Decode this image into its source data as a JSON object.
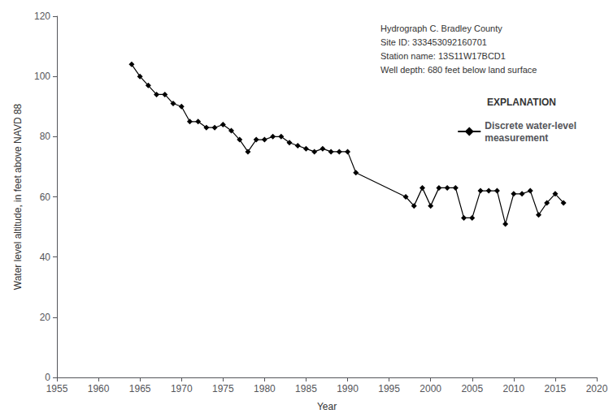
{
  "chart_data": {
    "type": "line",
    "x": [
      1964,
      1965,
      1966,
      1967,
      1968,
      1969,
      1970,
      1971,
      1972,
      1973,
      1974,
      1975,
      1976,
      1977,
      1978,
      1979,
      1980,
      1981,
      1982,
      1983,
      1984,
      1985,
      1986,
      1987,
      1988,
      1989,
      1990,
      1991,
      1997,
      1998,
      1999,
      2000,
      2001,
      2002,
      2003,
      2004,
      2005,
      2006,
      2007,
      2008,
      2009,
      2010,
      2011,
      2012,
      2013,
      2014,
      2015,
      2016
    ],
    "series": [
      {
        "name": "Discrete water-level\nmeasurement",
        "color": "#000000",
        "marker": "diamond",
        "values": [
          104,
          100,
          97,
          94,
          94,
          91,
          90,
          85,
          85,
          83,
          83,
          84,
          82,
          79,
          75,
          79,
          79,
          80,
          80,
          78,
          77,
          76,
          75,
          76,
          75,
          75,
          75,
          68,
          60,
          57,
          63,
          57,
          63,
          63,
          63,
          53,
          53,
          62,
          62,
          62,
          51,
          61,
          61,
          62,
          54,
          58,
          61,
          58
        ]
      }
    ],
    "xlabel": "Year",
    "ylabel": "Water level altitude, in feet above NAVD 88",
    "xlim": [
      1955,
      2020
    ],
    "ylim": [
      0,
      120
    ],
    "xticks": [
      1955,
      1960,
      1965,
      1970,
      1975,
      1980,
      1985,
      1990,
      1995,
      2000,
      2005,
      2010,
      2015,
      2020
    ],
    "yticks": [
      0,
      20,
      40,
      60,
      80,
      100,
      120
    ],
    "annotation": "Hydrograph C. Bradley County\nSite ID: 333453092160701\nStation name: 13S11W17BCD1\nWell depth: 680 feet below land surface",
    "legend_title": "EXPLANATION",
    "legend": "right",
    "grid": false
  }
}
